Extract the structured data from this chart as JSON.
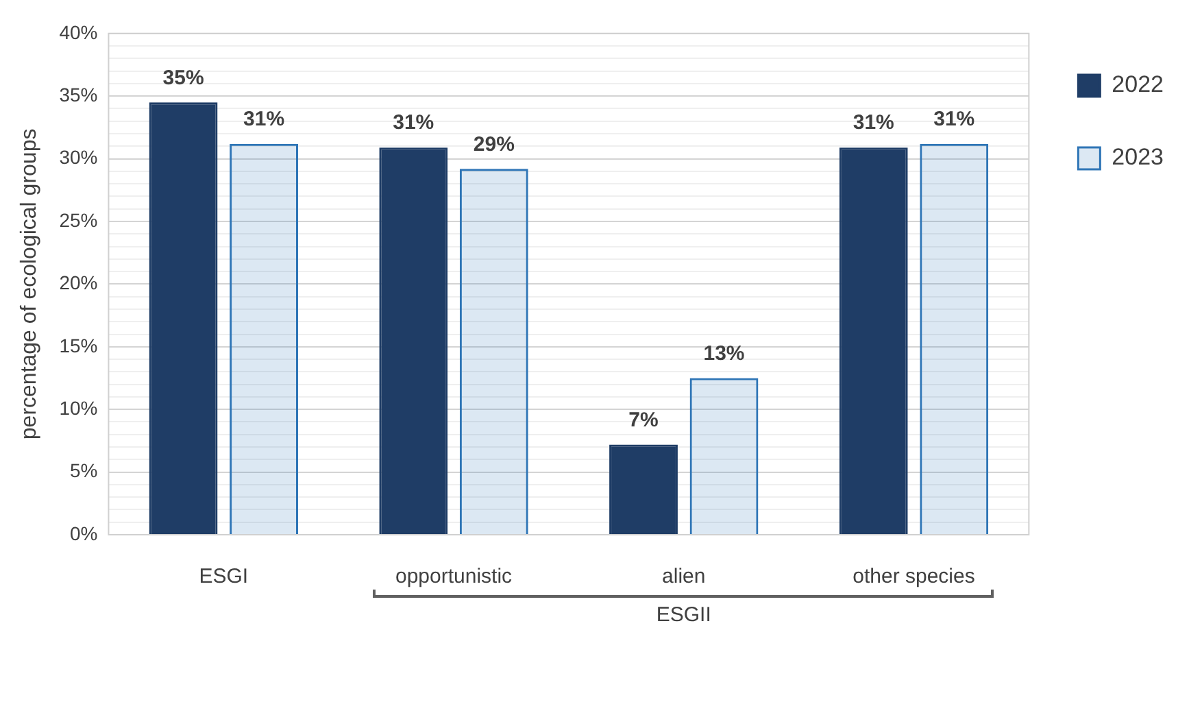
{
  "chart_data": {
    "type": "bar",
    "ylabel": "percentage of ecological groups",
    "categories": [
      "ESGI",
      "opportunistic",
      "alien",
      "other species"
    ],
    "series": [
      {
        "name": "2022",
        "color": "#1f3d66",
        "values": [
          34.5,
          30.9,
          7.2,
          30.9
        ],
        "value_labels": [
          "35%",
          "31%",
          "7%",
          "31%"
        ]
      },
      {
        "name": "2023",
        "color": "#2e75b6",
        "values": [
          31.2,
          29.2,
          12.5,
          31.2
        ],
        "value_labels": [
          "31%",
          "29%",
          "13%",
          "31%"
        ]
      }
    ],
    "ylim": [
      0,
      40
    ],
    "yticks": [
      {
        "value": 0,
        "label": "0%"
      },
      {
        "value": 1,
        "label": null
      },
      {
        "value": 2,
        "label": null
      },
      {
        "value": 3,
        "label": null
      },
      {
        "value": 4,
        "label": null
      },
      {
        "value": 5,
        "label": "5%"
      },
      {
        "value": 6,
        "label": null
      },
      {
        "value": 7,
        "label": null
      },
      {
        "value": 8,
        "label": null
      },
      {
        "value": 9,
        "label": null
      },
      {
        "value": 10,
        "label": "10%"
      },
      {
        "value": 11,
        "label": null
      },
      {
        "value": 12,
        "label": null
      },
      {
        "value": 13,
        "label": null
      },
      {
        "value": 14,
        "label": null
      },
      {
        "value": 15,
        "label": "15%"
      },
      {
        "value": 16,
        "label": null
      },
      {
        "value": 17,
        "label": null
      },
      {
        "value": 18,
        "label": null
      },
      {
        "value": 19,
        "label": null
      },
      {
        "value": 20,
        "label": "20%"
      },
      {
        "value": 21,
        "label": null
      },
      {
        "value": 22,
        "label": null
      },
      {
        "value": 23,
        "label": null
      },
      {
        "value": 24,
        "label": null
      },
      {
        "value": 25,
        "label": "25%"
      },
      {
        "value": 26,
        "label": null
      },
      {
        "value": 27,
        "label": null
      },
      {
        "value": 28,
        "label": null
      },
      {
        "value": 29,
        "label": null
      },
      {
        "value": 30,
        "label": "30%"
      },
      {
        "value": 31,
        "label": null
      },
      {
        "value": 32,
        "label": null
      },
      {
        "value": 33,
        "label": null
      },
      {
        "value": 34,
        "label": null
      },
      {
        "value": 35,
        "label": "35%"
      },
      {
        "value": 36,
        "label": null
      },
      {
        "value": 37,
        "label": null
      },
      {
        "value": 38,
        "label": null
      },
      {
        "value": 39,
        "label": null
      },
      {
        "value": 40,
        "label": "40%"
      }
    ],
    "grid": "y",
    "legend": "right",
    "annotations": [
      "ESGII"
    ]
  }
}
